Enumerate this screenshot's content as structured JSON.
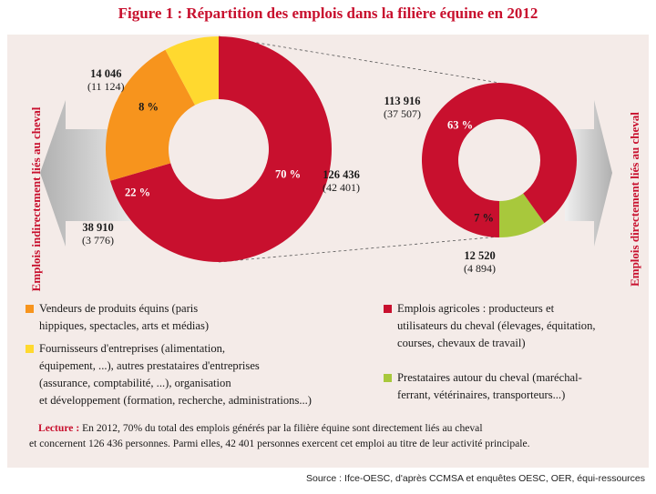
{
  "title": "Figure 1 : Répartition des emplois dans la filière équine en 2012",
  "side_left": "Emplois indirectement liés au cheval",
  "side_right": "Emplois directement liés au cheval",
  "colors": {
    "red": "#c8102e",
    "orange": "#f7941d",
    "yellow": "#ffd92f",
    "green": "#a8c83c",
    "panel": "#f4ebe8"
  },
  "chart_data": [
    {
      "type": "pie",
      "name": "",
      "slices": [
        {
          "label": "70 %",
          "value": 126436,
          "sub_value": 42401,
          "value_text": "126 436",
          "sub_text": "(42 401)",
          "color": "#c8102e"
        },
        {
          "label": "22 %",
          "value": 38910,
          "sub_value": 3776,
          "value_text": "38 910",
          "sub_text": "(3 776)",
          "color": "#f7941d"
        },
        {
          "label": "8 %",
          "value": 14046,
          "sub_value": 11124,
          "value_text": "14 046",
          "sub_text": "(11 124)",
          "color": "#ffd92f"
        }
      ]
    },
    {
      "type": "pie",
      "name": "",
      "slices": [
        {
          "label": "63 %",
          "value": 113916,
          "sub_value": 37507,
          "value_text": "113 916",
          "sub_text": "(37 507)",
          "color": "#c8102e"
        },
        {
          "label": "7 %",
          "value": 12520,
          "sub_value": 4894,
          "value_text": "12 520",
          "sub_text": "(4 894)",
          "color": "#a8c83c"
        }
      ]
    }
  ],
  "legend": [
    {
      "lines": [
        "Vendeurs de produits équins (paris",
        "hippiques, spectacles, arts et médias)"
      ],
      "color": "#f7941d"
    },
    {
      "lines": [
        "Fournisseurs d'entreprises (alimentation,",
        "équipement, ...), autres prestataires d'entreprises",
        "(assurance, comptabilité,  ...), organisation",
        "et développement (formation, recherche, administrations...)"
      ],
      "color": "#ffd92f"
    },
    {
      "lines": [
        "Emplois agricoles : producteurs et",
        "utilisateurs du cheval (élevages, équitation,",
        "courses, chevaux de travail)"
      ],
      "color": "#c8102e"
    },
    {
      "lines": [
        "Prestataires autour du cheval (maréchal-",
        "ferrant, vétérinaires, transporteurs...)"
      ],
      "color": "#a8c83c"
    }
  ],
  "lecture": {
    "label": "Lecture :",
    "line1": "En 2012, 70% du total des emplois générés par la filière équine sont directement liés au cheval",
    "line2": "et concernent 126 436 personnes. Parmi elles, 42 401 personnes exercent cet emploi au titre de leur activité principale."
  },
  "source": "Source : Ifce-OESC, d'après CCMSA et enquêtes OESC, OER, équi-ressources"
}
